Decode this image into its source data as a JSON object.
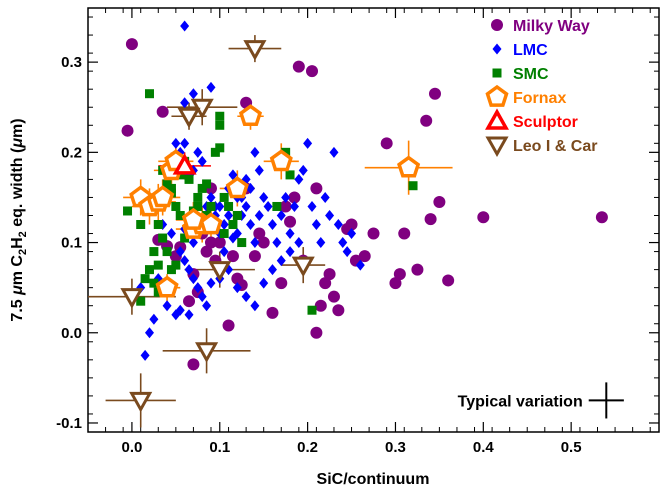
{
  "chart_data": {
    "type": "scatter",
    "xlabel": "SiC/continuum",
    "ylabel_parts": {
      "pre": "7.5 ",
      "mu": "μ",
      "mid": "m C",
      "sub1": "2",
      "h": "H",
      "sub2": "2",
      "post": " eq. width (",
      "mu2": "μ",
      "end": "m)"
    },
    "xlim": [
      -0.05,
      0.6
    ],
    "ylim": [
      -0.11,
      0.36
    ],
    "xticks": [
      0.0,
      0.1,
      0.2,
      0.3,
      0.4,
      0.5
    ],
    "xtick_labels": [
      "0.0",
      "0.1",
      "0.2",
      "0.3",
      "0.4",
      "0.5"
    ],
    "yticks": [
      -0.1,
      0.0,
      0.1,
      0.2,
      0.3
    ],
    "ytick_labels": [
      "-0.1",
      "0.0",
      "0.1",
      "0.2",
      "0.3"
    ],
    "legend_position": "top-right",
    "colors": {
      "milky_way": "#800080",
      "lmc": "#0000ff",
      "smc": "#008000",
      "fornax": "#ff8000",
      "sculptor": "#ff0000",
      "leo_car": "#7a4a1e"
    },
    "typical_variation": {
      "label": "Typical variation",
      "x": 0.54,
      "y": -0.075,
      "xerr": 0.02,
      "yerr": 0.02
    },
    "series": [
      {
        "name": "Milky Way",
        "marker": "circle",
        "color": "#800080",
        "points": [
          [
            -0.005,
            0.224
          ],
          [
            0.035,
            0.245
          ],
          [
            0.03,
            0.103
          ],
          [
            0.04,
            0.096
          ],
          [
            0.055,
            0.095
          ],
          [
            0.05,
            0.085
          ],
          [
            0.065,
            0.035
          ],
          [
            0.07,
            0.065
          ],
          [
            0.075,
            0.045
          ],
          [
            0.08,
            0.11
          ],
          [
            0.085,
            0.09
          ],
          [
            0.09,
            0.1
          ],
          [
            0.095,
            0.08
          ],
          [
            0.1,
            0.1
          ],
          [
            0.11,
            0.008
          ],
          [
            0.115,
            0.085
          ],
          [
            0.12,
            0.06
          ],
          [
            0.125,
            0.053
          ],
          [
            0.13,
            0.255
          ],
          [
            0.13,
            0.16
          ],
          [
            0.14,
            0.085
          ],
          [
            0.145,
            0.11
          ],
          [
            0.15,
            0.1
          ],
          [
            0.16,
            0.022
          ],
          [
            0.17,
            0.055
          ],
          [
            0.175,
            0.14
          ],
          [
            0.18,
            0.123
          ],
          [
            0.185,
            0.15
          ],
          [
            0.195,
            0.08
          ],
          [
            0.19,
            0.295
          ],
          [
            0.205,
            0.29
          ],
          [
            0.21,
            0.16
          ],
          [
            0.215,
            0.03
          ],
          [
            0.22,
            0.055
          ],
          [
            0.225,
            0.065
          ],
          [
            0.23,
            0.04
          ],
          [
            0.235,
            0.025
          ],
          [
            0.245,
            0.115
          ],
          [
            0.25,
            0.12
          ],
          [
            0.255,
            0.08
          ],
          [
            0.265,
            0.085
          ],
          [
            0.275,
            0.11
          ],
          [
            0.29,
            0.21
          ],
          [
            0.3,
            0.055
          ],
          [
            0.305,
            0.065
          ],
          [
            0.31,
            0.11
          ],
          [
            0.325,
            0.07
          ],
          [
            0.335,
            0.235
          ],
          [
            0.35,
            0.145
          ],
          [
            0.345,
            0.265
          ],
          [
            0.36,
            0.058
          ],
          [
            0.34,
            0.126
          ],
          [
            0.4,
            0.128
          ],
          [
            0.535,
            0.128
          ],
          [
            0.0,
            0.32
          ],
          [
            0.21,
            0.0
          ],
          [
            0.09,
            0.16
          ],
          [
            0.07,
            -0.035
          ]
        ]
      },
      {
        "name": "LMC",
        "marker": "diamond",
        "color": "#0000ff",
        "points": [
          [
            0.06,
            0.34
          ],
          [
            0.06,
            0.255
          ],
          [
            0.07,
            0.265
          ],
          [
            0.09,
            0.272
          ],
          [
            0.05,
            0.21
          ],
          [
            0.055,
            0.2
          ],
          [
            0.06,
            0.21
          ],
          [
            0.065,
            0.175
          ],
          [
            0.07,
            0.18
          ],
          [
            0.075,
            0.2
          ],
          [
            0.08,
            0.19
          ],
          [
            0.085,
            0.14
          ],
          [
            0.09,
            0.15
          ],
          [
            0.095,
            0.13
          ],
          [
            0.1,
            0.14
          ],
          [
            0.105,
            0.12
          ],
          [
            0.11,
            0.13
          ],
          [
            0.115,
            0.105
          ],
          [
            0.12,
            0.11
          ],
          [
            0.125,
            0.15
          ],
          [
            0.13,
            0.14
          ],
          [
            0.135,
            0.12
          ],
          [
            0.14,
            0.1
          ],
          [
            0.145,
            0.13
          ],
          [
            0.15,
            0.15
          ],
          [
            0.155,
            0.14
          ],
          [
            0.16,
            0.12
          ],
          [
            0.165,
            0.1
          ],
          [
            0.17,
            0.13
          ],
          [
            0.175,
            0.15
          ],
          [
            0.18,
            0.11
          ],
          [
            0.185,
            0.14
          ],
          [
            0.19,
            0.17
          ],
          [
            0.195,
            0.18
          ],
          [
            0.2,
            0.21
          ],
          [
            0.205,
            0.14
          ],
          [
            0.21,
            0.12
          ],
          [
            0.215,
            0.1
          ],
          [
            0.22,
            0.15
          ],
          [
            0.225,
            0.13
          ],
          [
            0.23,
            0.2
          ],
          [
            0.235,
            0.12
          ],
          [
            0.24,
            0.1
          ],
          [
            0.245,
            0.09
          ],
          [
            0.25,
            0.11
          ],
          [
            0.26,
            0.075
          ],
          [
            0.055,
            0.09
          ],
          [
            0.06,
            0.08
          ],
          [
            0.065,
            0.07
          ],
          [
            0.07,
            0.06
          ],
          [
            0.075,
            0.05
          ],
          [
            0.08,
            0.04
          ],
          [
            0.085,
            0.03
          ],
          [
            0.09,
            0.055
          ],
          [
            0.1,
            0.06
          ],
          [
            0.11,
            0.07
          ],
          [
            0.12,
            0.05
          ],
          [
            0.13,
            0.04
          ],
          [
            0.14,
            0.03
          ],
          [
            0.15,
            0.055
          ],
          [
            0.16,
            0.07
          ],
          [
            0.17,
            0.08
          ],
          [
            0.18,
            0.09
          ],
          [
            0.19,
            0.1
          ],
          [
            0.025,
            0.015
          ],
          [
            0.03,
            0.06
          ],
          [
            0.035,
            0.05
          ],
          [
            0.04,
            0.03
          ],
          [
            0.045,
            0.045
          ],
          [
            0.05,
            0.02
          ],
          [
            0.01,
            0.05
          ],
          [
            0.015,
            -0.025
          ],
          [
            0.02,
            0.0
          ],
          [
            0.055,
            0.025
          ],
          [
            0.065,
            0.02
          ],
          [
            0.07,
            0.1
          ],
          [
            0.095,
            0.14
          ],
          [
            0.1,
            0.11
          ],
          [
            0.105,
            0.09
          ],
          [
            0.11,
            0.16
          ],
          [
            0.115,
            0.175
          ],
          [
            0.12,
            0.15
          ],
          [
            0.125,
            0.13
          ],
          [
            0.13,
            0.17
          ],
          [
            0.135,
            0.16
          ],
          [
            0.14,
            0.2
          ],
          [
            0.145,
            0.18
          ],
          [
            0.06,
            0.115
          ],
          [
            0.035,
            0.12
          ],
          [
            0.045,
            0.11
          ]
        ]
      },
      {
        "name": "SMC",
        "marker": "square",
        "color": "#008000",
        "points": [
          [
            0.02,
            0.265
          ],
          [
            -0.005,
            0.135
          ],
          [
            0.01,
            0.12
          ],
          [
            0.015,
            0.06
          ],
          [
            0.02,
            0.07
          ],
          [
            0.025,
            0.09
          ],
          [
            0.03,
            0.075
          ],
          [
            0.035,
            0.18
          ],
          [
            0.04,
            0.165
          ],
          [
            0.045,
            0.16
          ],
          [
            0.05,
            0.14
          ],
          [
            0.055,
            0.175
          ],
          [
            0.06,
            0.19
          ],
          [
            0.065,
            0.17
          ],
          [
            0.07,
            0.135
          ],
          [
            0.075,
            0.15
          ],
          [
            0.08,
            0.16
          ],
          [
            0.085,
            0.13
          ],
          [
            0.09,
            0.14
          ],
          [
            0.095,
            0.2
          ],
          [
            0.1,
            0.205
          ],
          [
            0.1,
            0.23
          ],
          [
            0.1,
            0.24
          ],
          [
            0.105,
            0.15
          ],
          [
            0.11,
            0.14
          ],
          [
            0.115,
            0.12
          ],
          [
            0.12,
            0.13
          ],
          [
            0.125,
            0.1
          ],
          [
            0.03,
            0.12
          ],
          [
            0.035,
            0.105
          ],
          [
            0.04,
            0.09
          ],
          [
            0.045,
            0.07
          ],
          [
            0.05,
            0.075
          ],
          [
            0.025,
            0.055
          ],
          [
            0.03,
            0.045
          ],
          [
            0.01,
            0.035
          ],
          [
            0.015,
            0.14
          ],
          [
            0.06,
            0.105
          ],
          [
            0.065,
            0.12
          ],
          [
            0.075,
            0.14
          ],
          [
            0.085,
            0.165
          ],
          [
            0.095,
            0.12
          ],
          [
            0.105,
            0.11
          ],
          [
            0.175,
            0.2
          ],
          [
            0.18,
            0.175
          ],
          [
            0.165,
            0.14
          ],
          [
            0.32,
            0.163
          ],
          [
            0.205,
            0.025
          ],
          [
            0.055,
            0.13
          ],
          [
            0.045,
            0.155
          ]
        ]
      },
      {
        "name": "Fornax",
        "marker": "pentagon",
        "color": "#ff8000",
        "points": [
          [
            0.01,
            0.15,
            0.02,
            0.02
          ],
          [
            0.02,
            0.14,
            0.02,
            0.02
          ],
          [
            0.03,
            0.145,
            0.02,
            0.02
          ],
          [
            0.035,
            0.15,
            0.02,
            0.02
          ],
          [
            0.045,
            0.18,
            0.02,
            0.02
          ],
          [
            0.05,
            0.19,
            0.02,
            0.02
          ],
          [
            0.07,
            0.115,
            0.02,
            0.02
          ],
          [
            0.08,
            0.12,
            0.02,
            0.02
          ],
          [
            0.09,
            0.12,
            0.02,
            0.02
          ],
          [
            0.12,
            0.16,
            0.02,
            0.02
          ],
          [
            0.135,
            0.24,
            0.015,
            0.015
          ],
          [
            0.17,
            0.19,
            0.02,
            0.02
          ],
          [
            0.315,
            0.183,
            0.05,
            0.03
          ],
          [
            0.04,
            0.05,
            0.015,
            0.015
          ],
          [
            0.07,
            0.125,
            0.02,
            0.02
          ]
        ]
      },
      {
        "name": "Sculptor",
        "marker": "triangle-up",
        "color": "#ff0000",
        "points": [
          [
            0.06,
            0.185,
            0.03,
            0.015
          ]
        ]
      },
      {
        "name": "Leo I & Car",
        "marker": "triangle-down",
        "color": "#7a4a1e",
        "points": [
          [
            0.14,
            0.315,
            0.03,
            0.015
          ],
          [
            0.08,
            0.25,
            0.04,
            0.02
          ],
          [
            0.065,
            0.24,
            0.02,
            0.015
          ],
          [
            0.0,
            0.04,
            0.05,
            0.02
          ],
          [
            0.1,
            0.07,
            0.04,
            0.02
          ],
          [
            0.195,
            0.075,
            0.025,
            0.02
          ],
          [
            0.085,
            -0.02,
            0.05,
            0.025
          ],
          [
            0.01,
            -0.075,
            0.04,
            0.03
          ]
        ]
      }
    ]
  }
}
